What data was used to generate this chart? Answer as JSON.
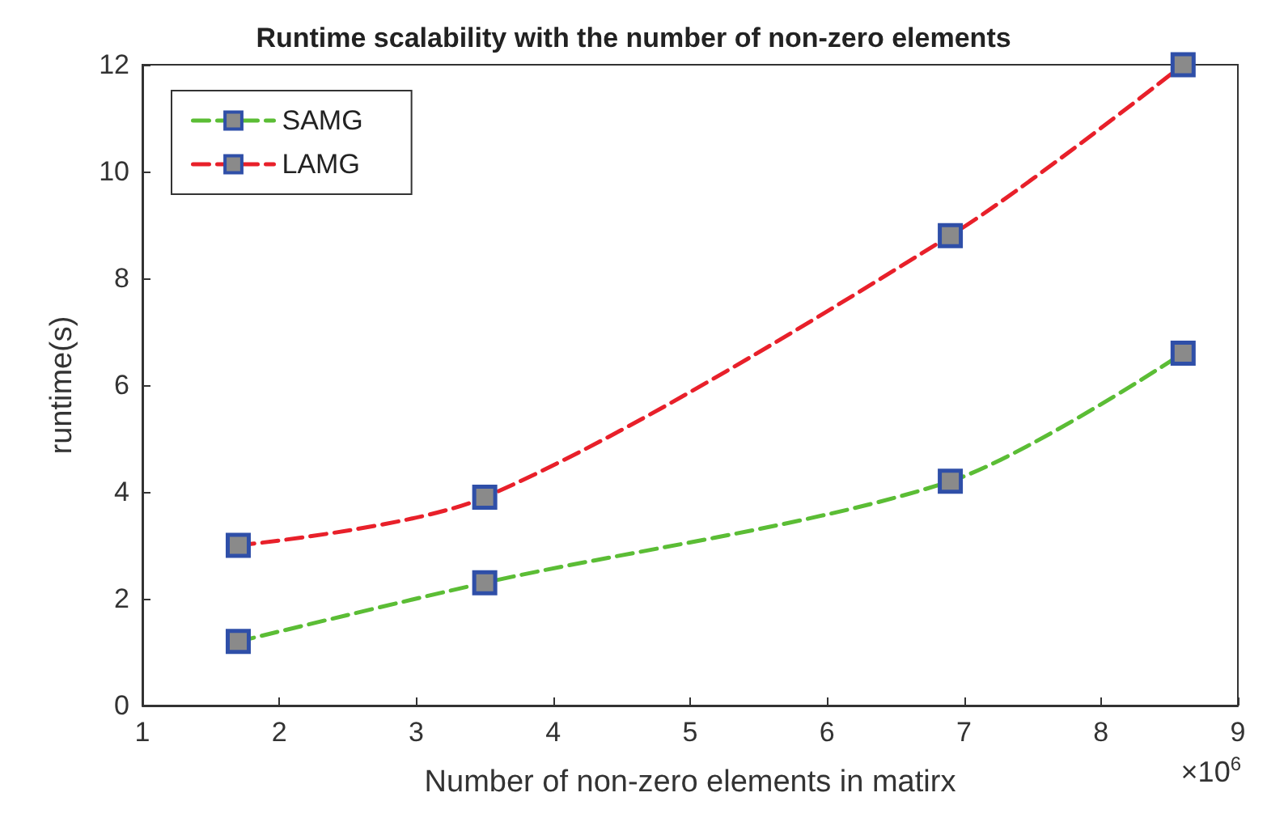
{
  "chart_data": {
    "type": "line",
    "title": "Runtime scalability with the number of non-zero elements",
    "xlabel": "Number of non-zero elements in matirx",
    "ylabel": "runtime(s)",
    "x": [
      1.7,
      3.5,
      6.9,
      8.6
    ],
    "series": [
      {
        "name": "SAMG",
        "color": "#5bbd35",
        "values": [
          1.2,
          2.3,
          4.2,
          6.6
        ]
      },
      {
        "name": "LAMG",
        "color": "#e8202a",
        "values": [
          3.0,
          3.9,
          8.8,
          12.0
        ]
      }
    ],
    "xlim": [
      1,
      9
    ],
    "xticks": [
      1,
      2,
      3,
      4,
      5,
      6,
      7,
      8,
      9
    ],
    "ylim": [
      0,
      12
    ],
    "yticks": [
      0,
      2,
      4,
      6,
      8,
      10,
      12
    ],
    "annotations": [
      "×10$^{6}$"
    ],
    "legend": "top left",
    "marker": "square",
    "line_style": "dashed",
    "grid": false
  }
}
